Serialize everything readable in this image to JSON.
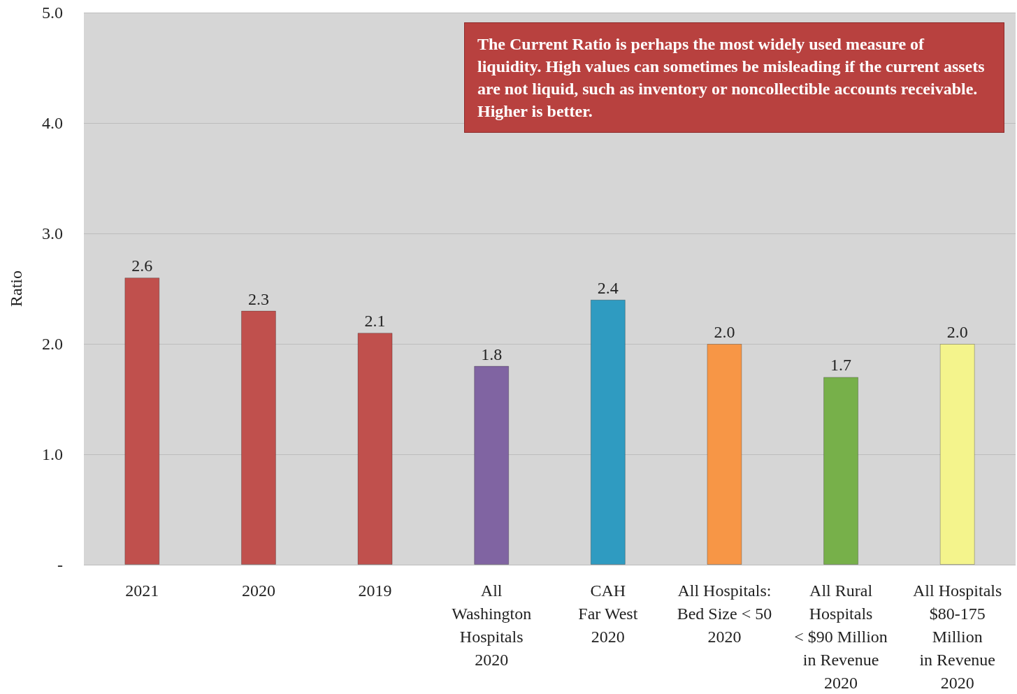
{
  "chart_data": {
    "type": "bar",
    "ylabel": "Ratio",
    "categories": [
      "2021",
      "2020",
      "2019",
      "All\nWashington\nHospitals\n2020",
      "CAH\nFar West\n2020",
      "All Hospitals:\nBed Size < 50\n2020",
      "All Rural\nHospitals\n< $90 Million\nin Revenue\n2020",
      "All Hospitals\n$80-175\nMillion\nin Revenue\n2020"
    ],
    "values": [
      2.6,
      2.3,
      2.1,
      1.8,
      2.4,
      2.0,
      1.7,
      2.0
    ],
    "colors": [
      "#c0504d",
      "#c0504d",
      "#c0504d",
      "#8064a2",
      "#2f9bc1",
      "#f79646",
      "#77b04a",
      "#f4f48c"
    ],
    "value_labels": [
      "2.6",
      "2.3",
      "2.1",
      "1.8",
      "2.4",
      "2.0",
      "1.7",
      "2.0"
    ],
    "ylim": [
      0,
      5
    ],
    "yticks": [
      {
        "value": 0,
        "label": "-"
      },
      {
        "value": 1,
        "label": "1.0"
      },
      {
        "value": 2,
        "label": "2.0"
      },
      {
        "value": 3,
        "label": "3.0"
      },
      {
        "value": 4,
        "label": "4.0"
      },
      {
        "value": 5,
        "label": "5.0"
      }
    ],
    "grid": "y",
    "annotations": [
      "The Current Ratio is perhaps the most widely used measure of liquidity. High values can sometimes be misleading if the current assets are not liquid, such as inventory or noncollectible accounts receivable. Higher is better."
    ]
  }
}
